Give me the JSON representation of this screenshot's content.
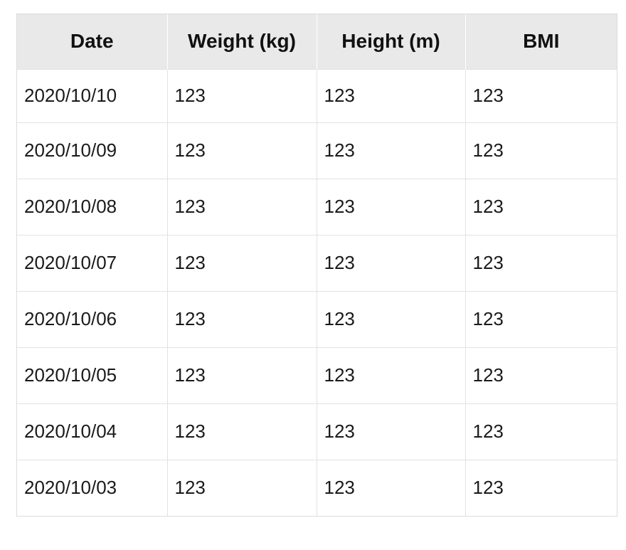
{
  "table": {
    "headers": [
      "Date",
      "Weight (kg)",
      "Height (m)",
      "BMI"
    ],
    "rows": [
      {
        "date": "2020/10/10",
        "weight": "123",
        "height": "123",
        "bmi": "123"
      },
      {
        "date": "2020/10/09",
        "weight": "123",
        "height": "123",
        "bmi": "123"
      },
      {
        "date": "2020/10/08",
        "weight": "123",
        "height": "123",
        "bmi": "123"
      },
      {
        "date": "2020/10/07",
        "weight": "123",
        "height": "123",
        "bmi": "123"
      },
      {
        "date": "2020/10/06",
        "weight": "123",
        "height": "123",
        "bmi": "123"
      },
      {
        "date": "2020/10/05",
        "weight": "123",
        "height": "123",
        "bmi": "123"
      },
      {
        "date": "2020/10/04",
        "weight": "123",
        "height": "123",
        "bmi": "123"
      },
      {
        "date": "2020/10/03",
        "weight": "123",
        "height": "123",
        "bmi": "123"
      }
    ]
  }
}
